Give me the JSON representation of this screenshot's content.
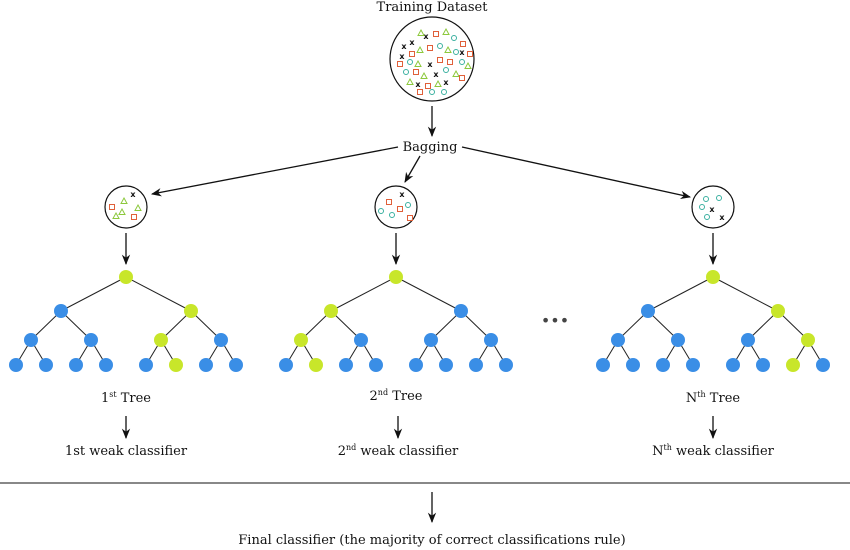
{
  "title": "Training Dataset",
  "bagging_label": "Bagging",
  "trees": [
    {
      "tree_label": {
        "base": "1",
        "sup": "st",
        "rest": " Tree"
      },
      "classifier_label": {
        "base": "1st weak classifier",
        "sup": "",
        "rest": ""
      }
    },
    {
      "tree_label": {
        "base": "2",
        "sup": "nd",
        "rest": " Tree"
      },
      "classifier_label": {
        "base": "2",
        "sup": "nd",
        "rest": " weak classifier"
      }
    },
    {
      "tree_label": {
        "base": "N",
        "sup": "th",
        "rest": " Tree"
      },
      "classifier_label": {
        "base": "N",
        "sup": "th",
        "rest": " weak classifier"
      }
    }
  ],
  "ellipsis": "•••",
  "final_label": "Final classifier (the majority of correct classifications rule)",
  "colors": {
    "node_blue": "#3a8ee6",
    "node_lime": "#c8e62a",
    "marker_red": "#e0603a",
    "marker_green": "#8cc83c",
    "marker_teal": "#3ab0a0",
    "marker_black": "#111111"
  },
  "icons": {
    "class_markers": [
      "x-marker",
      "triangle-marker",
      "square-marker",
      "circle-marker"
    ]
  }
}
